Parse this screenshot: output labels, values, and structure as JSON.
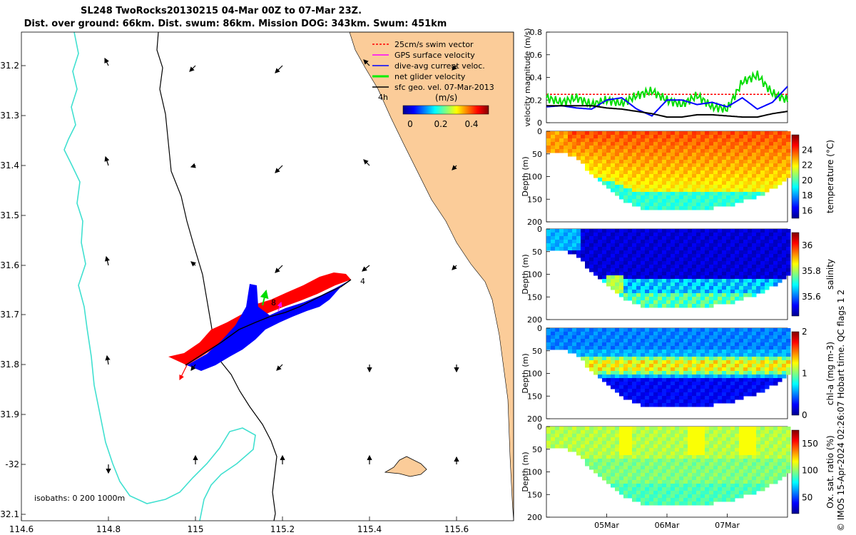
{
  "header": {
    "title_line1": "SL248 TwoRocks20130215 04-Mar 00Z to 07-Mar 23Z.",
    "title_line2": "Dist. over ground: 66km. Dist. swum: 86km. Mission DOG: 343km. Swum: 451km"
  },
  "map": {
    "lon_ticks": [
      "114.6",
      "114.8",
      "115",
      "115.2",
      "115.4",
      "115.6"
    ],
    "lat_ticks": [
      "31.2",
      "31.3",
      "31.4",
      "31.5",
      "31.6",
      "31.7",
      "31.8",
      "31.9",
      "-32",
      "32.1"
    ],
    "legend": [
      {
        "label": "25cm/s swim vector",
        "color": "#ff0000"
      },
      {
        "label": "GPS surface velocity",
        "color": "#ff00ff"
      },
      {
        "label": "dive-avg current veloc.",
        "color": "#0000ff"
      },
      {
        "label": "net glider velocity",
        "color": "#00ee00"
      },
      {
        "label": "sfc geo. vel. 07-Mar-2013",
        "color": "#000000"
      }
    ],
    "colorbar_unit": "(m/s)",
    "colorbar_ticks": [
      "0",
      "0.2",
      "0.4"
    ],
    "isobaths_label": "isobaths: 0   200  1000m",
    "markers": {
      "start": "4",
      "mid": "8",
      "time": "4h"
    },
    "colors": {
      "land": "#fbcc99",
      "coast200": "#000000",
      "isobath1000": "#40e0d0"
    }
  },
  "credit": "© IMOS 15-Apr-2024 02:26:07 Hobart time. QC flags 1  2",
  "chart_data": [
    {
      "type": "line",
      "title": "",
      "ylabel": "velocity magnitude (m/s)",
      "ylim": [
        0,
        0.8
      ],
      "yticks": [
        "0",
        "0.2",
        "0.4",
        "0.6",
        "0.8"
      ],
      "x_days": [
        0,
        0.25,
        0.5,
        0.75,
        1,
        1.25,
        1.5,
        1.75,
        2,
        2.25,
        2.5,
        2.75,
        3,
        3.25,
        3.5,
        3.75,
        4
      ],
      "series": [
        {
          "name": "swim speed",
          "color": "#ff0000",
          "values": [
            0.25,
            0.25,
            0.25,
            0.25,
            0.25,
            0.25,
            0.25,
            0.25,
            0.25,
            0.25,
            0.25,
            0.25,
            0.25,
            0.25,
            0.25,
            0.25,
            0.25
          ]
        },
        {
          "name": "net glider velocity",
          "color": "#00dd00",
          "values": [
            0.22,
            0.18,
            0.22,
            0.16,
            0.2,
            0.17,
            0.24,
            0.28,
            0.2,
            0.16,
            0.24,
            0.14,
            0.12,
            0.36,
            0.42,
            0.26,
            0.2
          ]
        },
        {
          "name": "dive-avg current",
          "color": "#0000ff",
          "values": [
            0.14,
            0.15,
            0.13,
            0.12,
            0.2,
            0.22,
            0.12,
            0.06,
            0.2,
            0.2,
            0.16,
            0.18,
            0.14,
            0.22,
            0.12,
            0.18,
            0.32
          ]
        },
        {
          "name": "sfc geo vel",
          "color": "#000000",
          "values": [
            0.15,
            0.15,
            0.15,
            0.15,
            0.13,
            0.12,
            0.1,
            0.08,
            0.05,
            0.05,
            0.07,
            0.07,
            0.06,
            0.05,
            0.05,
            0.08,
            0.1
          ]
        }
      ]
    },
    {
      "type": "heatmap",
      "name": "temperature",
      "ylabel": "Depth (m)",
      "cbar_label": "temperature (°C)",
      "ylim": [
        0,
        200
      ],
      "yticks": [
        "0",
        "50",
        "100",
        "150",
        "200"
      ],
      "cbar_ticks": [
        "16",
        "18",
        "20",
        "22",
        "24"
      ],
      "cbar_range": [
        15,
        26
      ],
      "max_depth": [
        40,
        40,
        60,
        95,
        125,
        150,
        165,
        170,
        172,
        172,
        170,
        165,
        160,
        150,
        140,
        120,
        100
      ],
      "surface_value": 25.3,
      "deep_value": 18.5,
      "thermocline_depth": [
        60,
        60,
        70,
        80,
        95,
        110,
        120,
        130,
        130,
        130,
        130,
        130,
        130,
        130,
        130,
        130,
        130
      ]
    },
    {
      "type": "heatmap",
      "name": "salinity",
      "ylabel": "Depth (m)",
      "cbar_label": "salinity",
      "ylim": [
        0,
        200
      ],
      "yticks": [
        "0",
        "50",
        "100",
        "150",
        "200"
      ],
      "cbar_ticks": [
        "35.6",
        "35.8",
        "36"
      ],
      "cbar_range": [
        35.45,
        36.1
      ],
      "max_depth": [
        40,
        40,
        60,
        95,
        125,
        150,
        165,
        170,
        172,
        172,
        170,
        165,
        160,
        150,
        140,
        120,
        100
      ]
    },
    {
      "type": "heatmap",
      "name": "chl-a",
      "ylabel": "Depth (m)",
      "cbar_label": "chl-a (mg m-3)",
      "ylim": [
        0,
        200
      ],
      "yticks": [
        "0",
        "50",
        "100",
        "150",
        "200"
      ],
      "cbar_ticks": [
        "0",
        "1",
        "2"
      ],
      "cbar_range": [
        0,
        2
      ],
      "max_depth": [
        40,
        40,
        60,
        95,
        125,
        150,
        165,
        170,
        172,
        172,
        170,
        165,
        160,
        150,
        140,
        120,
        100
      ]
    },
    {
      "type": "heatmap",
      "name": "oxygen",
      "ylabel": "Depth (m)",
      "cbar_label": "Ox. sat. ratio (%)",
      "ylim": [
        0,
        200
      ],
      "yticks": [
        "0",
        "50",
        "100",
        "150",
        "200"
      ],
      "cbar_ticks": [
        "50",
        "100",
        "150"
      ],
      "cbar_range": [
        20,
        175
      ],
      "max_depth": [
        40,
        40,
        60,
        95,
        125,
        150,
        165,
        170,
        172,
        172,
        170,
        165,
        160,
        150,
        140,
        120,
        100
      ]
    }
  ],
  "time_axis": {
    "ticks": [
      "05Mar",
      "06Mar",
      "07Mar"
    ],
    "tick_days": [
      1,
      2,
      3
    ]
  }
}
